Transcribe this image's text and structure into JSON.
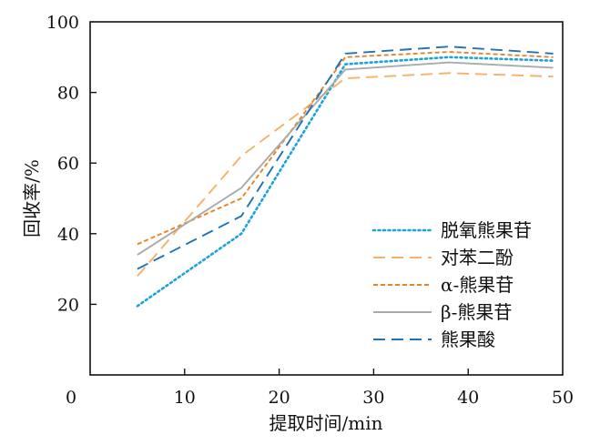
{
  "chart_data": {
    "type": "line",
    "xlabel": "提取时间/min",
    "ylabel": "回收率/%",
    "xlim": [
      0,
      50
    ],
    "ylim": [
      0,
      100
    ],
    "xticks": [
      0,
      10,
      20,
      30,
      40,
      50
    ],
    "yticks": [
      20,
      40,
      60,
      80,
      100
    ],
    "grid": false,
    "legend_position": "bottom-right",
    "series": [
      {
        "name": "脱氧熊果苷",
        "color": "#1aa3d9",
        "dash": "dotted",
        "x": [
          5,
          16,
          27,
          38,
          49
        ],
        "y": [
          19.5,
          40,
          88,
          90,
          89
        ]
      },
      {
        "name": "对苯二酚",
        "color": "#f4b26b",
        "dash": "dashed-long",
        "x": [
          5,
          16,
          27,
          38,
          49
        ],
        "y": [
          28,
          62,
          84,
          85.5,
          84.5
        ]
      },
      {
        "name": "α-熊果苷",
        "color": "#e88424",
        "dash": "dashed-short",
        "x": [
          5,
          16,
          27,
          38,
          49
        ],
        "y": [
          37,
          50,
          90,
          91.5,
          90
        ]
      },
      {
        "name": "β-熊果苷",
        "color": "#aaaaaa",
        "dash": "solid",
        "x": [
          5,
          16,
          27,
          38,
          49
        ],
        "y": [
          34,
          53,
          86.5,
          88.5,
          87
        ]
      },
      {
        "name": "熊果酸",
        "color": "#1e73b8",
        "dash": "dashed-long",
        "x": [
          5,
          16,
          27,
          38,
          49
        ],
        "y": [
          30,
          45,
          91,
          93,
          91
        ]
      }
    ]
  }
}
